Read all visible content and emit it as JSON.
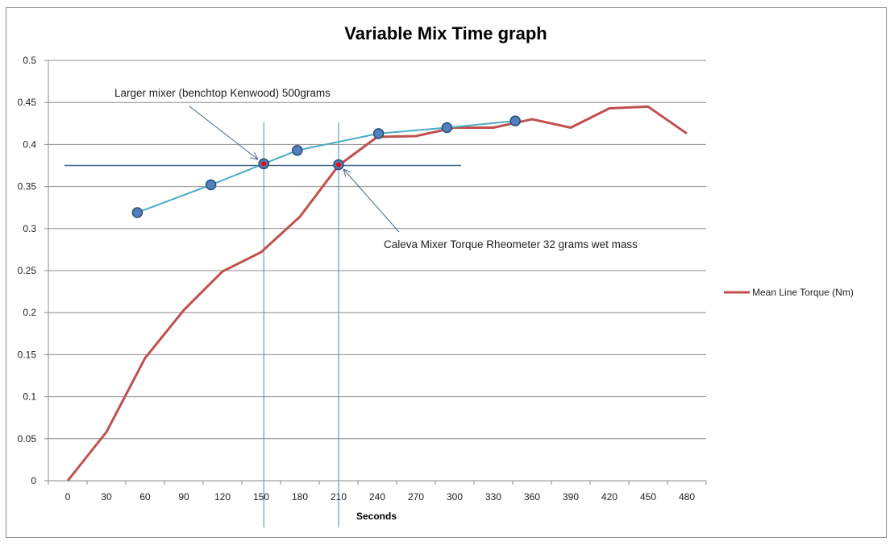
{
  "chart_data": {
    "type": "line",
    "title": "Variable Mix Time graph",
    "xlabel": "Seconds",
    "ylabel": "",
    "categories": [
      0,
      30,
      60,
      90,
      120,
      150,
      180,
      210,
      240,
      270,
      300,
      330,
      360,
      390,
      420,
      450,
      480
    ],
    "ylim": [
      0,
      0.5
    ],
    "yticks": [
      0,
      0.05,
      0.1,
      0.15,
      0.2,
      0.25,
      0.3,
      0.35,
      0.4,
      0.45,
      0.5
    ],
    "ytick_labels": [
      "0",
      "0.05",
      "0.1",
      "0.15",
      "0.2",
      "0.25",
      "0.3",
      "0.35",
      "0.4",
      "0.45",
      "0.5"
    ],
    "grid": "horizontal",
    "legend_position": "right",
    "series": [
      {
        "name": "Mean Line Torque (Nm)",
        "color": "#c0504d",
        "x": [
          0,
          30,
          60,
          90,
          120,
          150,
          180,
          210,
          240,
          270,
          300,
          330,
          360,
          390,
          420,
          450,
          480
        ],
        "values": [
          0,
          0.058,
          0.146,
          0.203,
          0.249,
          0.272,
          0.314,
          0.375,
          0.409,
          0.41,
          0.42,
          0.42,
          0.43,
          0.42,
          0.443,
          0.445,
          0.413
        ]
      },
      {
        "color": "#4bacc6",
        "marker_color": "#4f81bd",
        "x": [
          54,
          111,
          152,
          178,
          241,
          294,
          347
        ],
        "values": [
          0.319,
          0.352,
          0.377,
          0.393,
          0.413,
          0.42,
          0.428
        ]
      }
    ],
    "highlight_points": [
      {
        "x": 152,
        "y": 0.377
      },
      {
        "x": 210,
        "y": 0.376
      }
    ],
    "highlight_color": "#ff0000",
    "reference_lines": {
      "horizontal_y": 0.375,
      "horizontal_x_range": [
        -2.5,
        305
      ],
      "vertical_x": [
        152,
        210
      ],
      "color": "#4f81bd"
    },
    "annotations": [
      {
        "text": "Larger mixer (benchtop Kenwood) 500grams",
        "points_to": {
          "x": 152,
          "y": 0.377
        }
      },
      {
        "text": "Caleva Mixer Torque Rheometer 32 grams wet mass",
        "points_to": {
          "x": 210,
          "y": 0.376
        }
      }
    ]
  }
}
